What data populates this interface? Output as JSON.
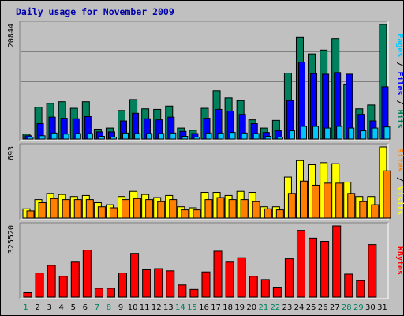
{
  "chart_data": {
    "type": "bar",
    "title": "Daily usage for November 2009",
    "colors": {
      "background": "#c0c0c0",
      "hits": "#00805c",
      "files": "#0000ff",
      "pages": "#00c8ff",
      "visits": "#ffff00",
      "sites": "#ff8000",
      "kbytes": "#ff0000",
      "weekend_label": "#00805c",
      "weekday_label": "#000000"
    },
    "categories": [
      "1",
      "2",
      "3",
      "4",
      "5",
      "6",
      "7",
      "8",
      "9",
      "10",
      "11",
      "12",
      "13",
      "14",
      "15",
      "16",
      "17",
      "18",
      "19",
      "20",
      "21",
      "22",
      "23",
      "24",
      "25",
      "26",
      "27",
      "28",
      "29",
      "30",
      "31"
    ],
    "weekend_days": [
      "1",
      "7",
      "8",
      "14",
      "15",
      "21",
      "22",
      "28",
      "29"
    ],
    "panels": [
      {
        "id": "hits",
        "max_label": "20844",
        "ylim": [
          0,
          20844
        ],
        "series": [
          {
            "name": "Hits",
            "values": [
              900,
              5800,
              6500,
              6800,
              5600,
              6800,
              1800,
              2000,
              5200,
              7200,
              5500,
              5400,
              6000,
              2000,
              1600,
              5600,
              8800,
              7500,
              7000,
              3500,
              2000,
              3400,
              12000,
              18500,
              15500,
              16200,
              18300,
              10000,
              5500,
              6200,
              20844
            ]
          },
          {
            "name": "Files",
            "values": [
              600,
              2800,
              4000,
              3800,
              3700,
              4100,
              1300,
              1300,
              3300,
              4700,
              3700,
              3500,
              4000,
              1400,
              1000,
              3800,
              5400,
              5100,
              4500,
              2800,
              1200,
              1500,
              7000,
              14000,
              11900,
              11800,
              12100,
              11800,
              4500,
              3300,
              9500
            ]
          },
          {
            "name": "Pages",
            "values": [
              350,
              600,
              1100,
              900,
              1000,
              1000,
              500,
              350,
              1100,
              1000,
              1000,
              1000,
              1100,
              500,
              350,
              1100,
              1100,
              1200,
              1100,
              1000,
              500,
              350,
              1500,
              2300,
              2300,
              2000,
              2300,
              2000,
              1500,
              2000,
              2200
            ]
          }
        ]
      },
      {
        "id": "visits",
        "max_label": "693",
        "ylim": [
          0,
          693
        ],
        "series": [
          {
            "name": "Visits",
            "values": [
              90,
              180,
              240,
              230,
              210,
              220,
              150,
              130,
              210,
              260,
              230,
              200,
              220,
              110,
              100,
              250,
              250,
              220,
              260,
              250,
              110,
              110,
              400,
              560,
              520,
              540,
              530,
              350,
              210,
              210,
              693
            ]
          },
          {
            "name": "Sites",
            "values": [
              70,
              150,
              190,
              180,
              180,
              180,
              110,
              100,
              180,
              190,
              180,
              160,
              180,
              80,
              80,
              180,
              200,
              180,
              180,
              160,
              90,
              80,
              240,
              360,
              320,
              340,
              340,
              240,
              160,
              130,
              460
            ]
          }
        ]
      },
      {
        "id": "kbytes",
        "max_label": "325520",
        "ylim": [
          0,
          325520
        ],
        "series": [
          {
            "name": "KBytes",
            "values": [
              20000,
              110000,
              145000,
              95000,
              160000,
              215000,
              40000,
              40000,
              110000,
              200000,
              125000,
              130000,
              120000,
              55000,
              35000,
              115000,
              210000,
              160000,
              180000,
              95000,
              80000,
              45000,
              175000,
              305000,
              270000,
              255000,
              325520,
              105000,
              75000,
              240000,
              0
            ]
          }
        ]
      }
    ],
    "right_labels": [
      {
        "panel": "hits",
        "parts": [
          {
            "text": "Pages",
            "color": "#00c8ff"
          },
          {
            "text": " / ",
            "color": "#000000"
          },
          {
            "text": "Files",
            "color": "#0000ff"
          },
          {
            "text": " / ",
            "color": "#000000"
          },
          {
            "text": "Hits",
            "color": "#00805c"
          }
        ]
      },
      {
        "panel": "visits",
        "parts": [
          {
            "text": "Sites",
            "color": "#ff8000"
          },
          {
            "text": " / ",
            "color": "#000000"
          },
          {
            "text": "Visits",
            "color": "#ffff00"
          }
        ]
      },
      {
        "panel": "kbytes",
        "parts": [
          {
            "text": "KBytes",
            "color": "#ff0000"
          }
        ]
      }
    ]
  }
}
